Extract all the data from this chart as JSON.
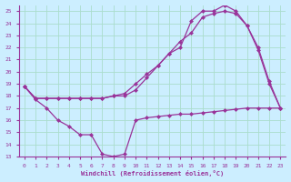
{
  "xlabel": "Windchill (Refroidissement éolien,°C)",
  "bg_color": "#cceeff",
  "grid_color": "#aaddcc",
  "line_color": "#993399",
  "xlim": [
    -0.5,
    23.5
  ],
  "ylim": [
    13,
    25.5
  ],
  "xticks": [
    0,
    1,
    2,
    3,
    4,
    5,
    6,
    7,
    8,
    9,
    10,
    11,
    12,
    13,
    14,
    15,
    16,
    17,
    18,
    19,
    20,
    21,
    22,
    23
  ],
  "yticks": [
    13,
    14,
    15,
    16,
    17,
    18,
    19,
    20,
    21,
    22,
    23,
    24,
    25
  ],
  "line1_x": [
    0,
    1,
    2,
    3,
    4,
    5,
    6,
    7,
    8,
    9,
    10,
    11,
    12,
    13,
    14,
    15,
    16,
    17,
    18,
    19,
    20,
    21,
    22,
    23
  ],
  "line1_y": [
    18.8,
    17.7,
    17.0,
    16.0,
    15.5,
    14.8,
    14.8,
    13.2,
    13.0,
    13.2,
    16.0,
    16.2,
    16.3,
    16.4,
    16.5,
    16.5,
    16.6,
    16.7,
    16.8,
    16.9,
    17.0,
    17.0,
    17.0,
    17.0
  ],
  "line2_x": [
    0,
    1,
    2,
    3,
    4,
    5,
    6,
    7,
    8,
    9,
    10,
    11,
    12,
    13,
    14,
    15,
    16,
    17,
    18,
    19,
    20,
    21,
    22,
    23
  ],
  "line2_y": [
    18.8,
    17.8,
    17.8,
    17.8,
    17.8,
    17.8,
    17.8,
    17.8,
    18.0,
    18.2,
    19.0,
    19.8,
    20.5,
    21.5,
    22.0,
    24.2,
    25.0,
    25.0,
    25.5,
    25.0,
    23.8,
    21.8,
    19.0,
    17.0
  ],
  "line3_x": [
    0,
    1,
    2,
    3,
    4,
    5,
    6,
    7,
    8,
    9,
    10,
    11,
    12,
    13,
    14,
    15,
    16,
    17,
    18,
    19,
    20,
    21,
    22,
    23
  ],
  "line3_y": [
    18.8,
    17.8,
    17.8,
    17.8,
    17.8,
    17.8,
    17.8,
    17.8,
    18.0,
    18.0,
    18.5,
    19.5,
    20.5,
    21.5,
    22.5,
    23.2,
    24.5,
    24.8,
    25.0,
    24.8,
    23.8,
    22.0,
    19.2,
    17.0
  ]
}
